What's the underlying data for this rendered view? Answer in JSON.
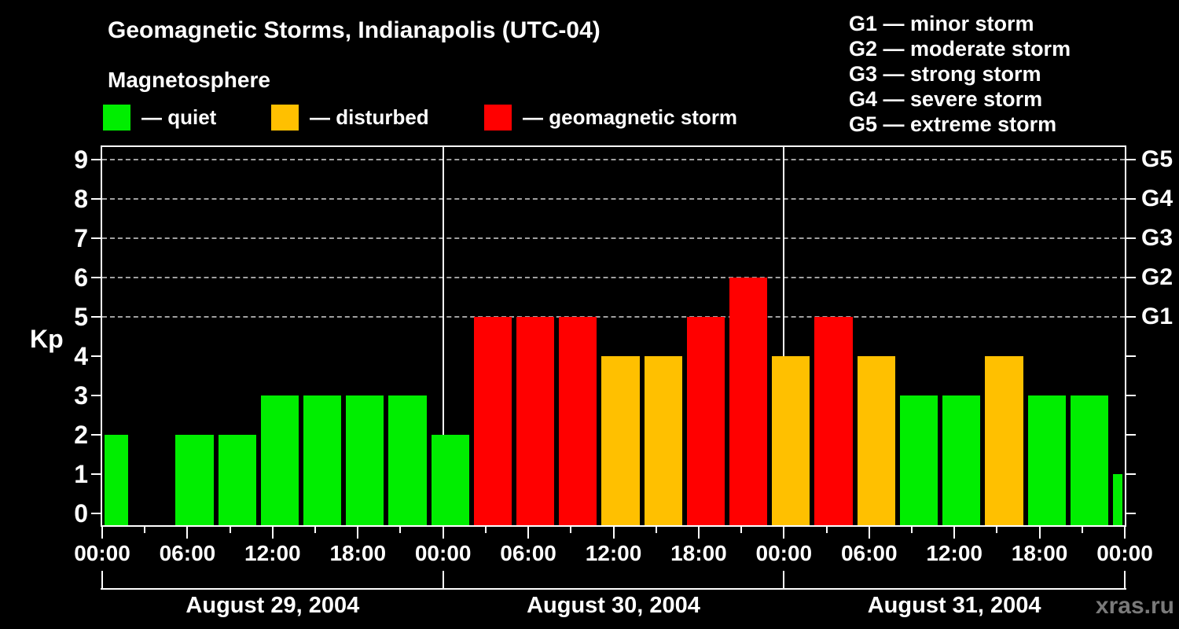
{
  "title": "Geomagnetic Storms, Indianapolis (UTC-04)",
  "subtitle": "Magnetosphere",
  "condition_legend": [
    {
      "label": "— quiet",
      "level": "quiet",
      "color": "#00ee00"
    },
    {
      "label": "— disturbed",
      "level": "disturbed",
      "color": "#ffc000"
    },
    {
      "label": "— geomagnetic storm",
      "level": "storm",
      "color": "#ff0000"
    }
  ],
  "storm_scale_legend": [
    "G1 — minor storm",
    "G2 — moderate storm",
    "G3 — strong storm",
    "G4 — severe storm",
    "G5 — extreme storm"
  ],
  "watermark": "xras.ru",
  "chart_data": {
    "type": "bar",
    "title": "Geomagnetic Storms, Indianapolis (UTC-04)",
    "ylabel": "Kp",
    "yticks": [
      0,
      1,
      2,
      3,
      4,
      5,
      6,
      7,
      8,
      9
    ],
    "ylim": [
      -0.35,
      9.6
    ],
    "grid": "dashed horizontal lines at Kp 5-9 only",
    "grid_dashed_kp": [
      5,
      6,
      7,
      8,
      9
    ],
    "right_axis_labels": [
      {
        "kp": 5,
        "label": "G1"
      },
      {
        "kp": 6,
        "label": "G2"
      },
      {
        "kp": 7,
        "label": "G3"
      },
      {
        "kp": 8,
        "label": "G4"
      },
      {
        "kp": 9,
        "label": "G5"
      }
    ],
    "x_axis": {
      "span_hours": 72,
      "minor_tick_hours": 3,
      "major_tick_hours": 6,
      "major_tick_labels": [
        "00:00",
        "06:00",
        "12:00",
        "18:00",
        "00:00",
        "06:00",
        "12:00",
        "18:00",
        "00:00",
        "06:00",
        "12:00",
        "18:00",
        "00:00"
      ],
      "day_boundary_hours": [
        24,
        48
      ]
    },
    "days": [
      "August 29, 2004",
      "August 30, 2004",
      "August 31, 2004"
    ],
    "bars": {
      "interval_hours": 3,
      "start_offset_hours": -1,
      "values": [
        2,
        0,
        2,
        2,
        3,
        3,
        3,
        3,
        2,
        5,
        5,
        5,
        4,
        4,
        5,
        6,
        4,
        5,
        4,
        3,
        3,
        4,
        3,
        3,
        1
      ]
    },
    "color_rules": {
      "quiet_max_kp": 3,
      "disturbed_kp": 4,
      "storm_min_kp": 5
    },
    "colors": {
      "quiet": "#00ee00",
      "disturbed": "#ffc000",
      "storm": "#ff0000",
      "grid": "#a0a0a0",
      "frame": "#ffffff",
      "text": "#ffffff",
      "watermark": "#7a7a7a",
      "background": "#000000"
    }
  }
}
